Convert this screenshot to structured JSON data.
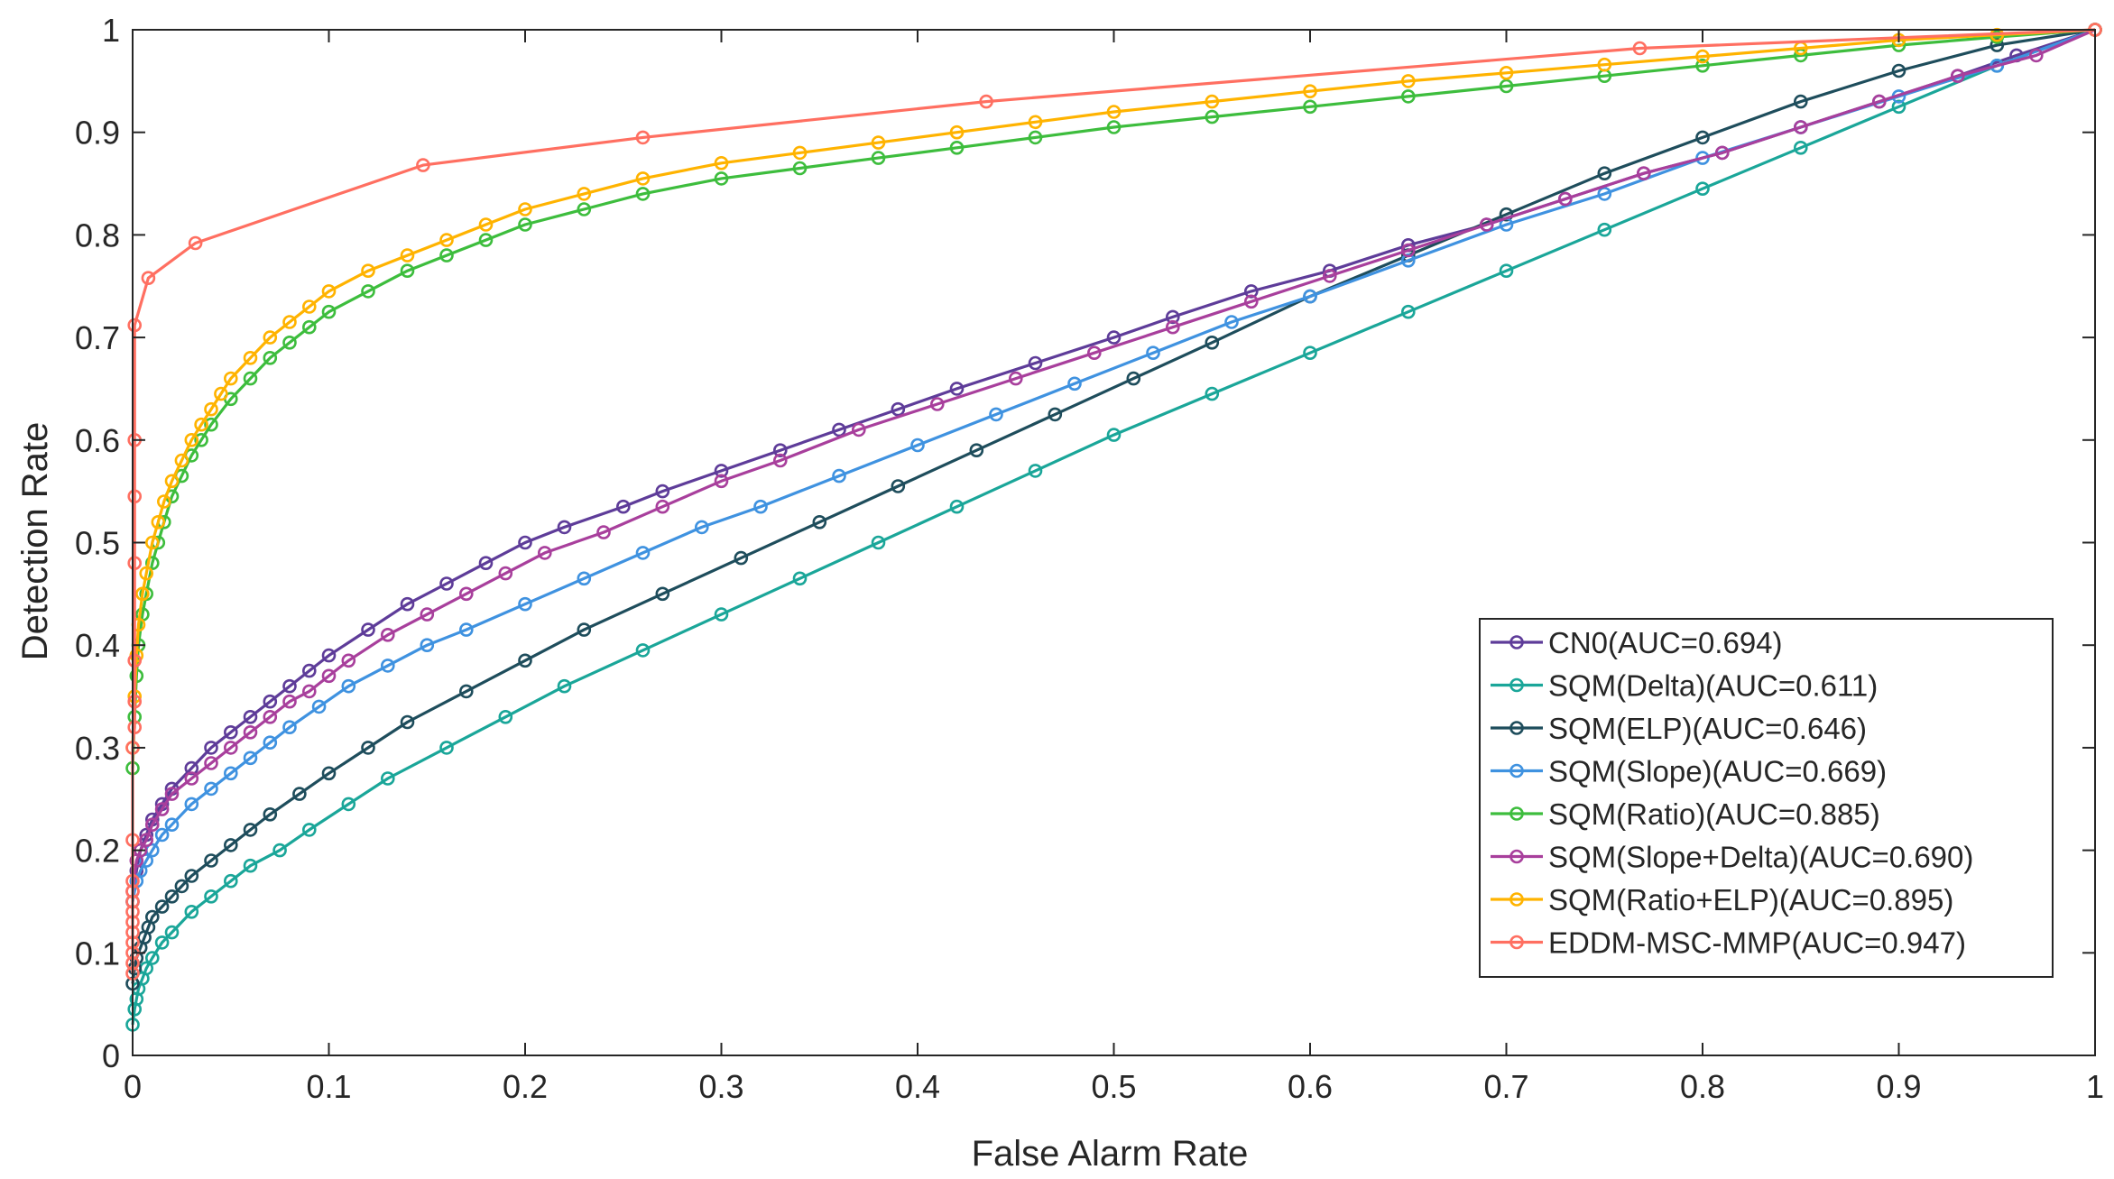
{
  "chart_data": {
    "type": "line",
    "title": "",
    "xlabel": "False Alarm Rate",
    "ylabel": "Detection Rate",
    "xlim": [
      0,
      1
    ],
    "ylim": [
      0,
      1
    ],
    "xticks": [
      "0",
      "0.1",
      "0.2",
      "0.3",
      "0.4",
      "0.5",
      "0.6",
      "0.7",
      "0.8",
      "0.9",
      "1"
    ],
    "yticks": [
      "0",
      "0.1",
      "0.2",
      "0.3",
      "0.4",
      "0.5",
      "0.6",
      "0.7",
      "0.8",
      "0.9",
      "1"
    ],
    "grid": false,
    "legend_position": "bottom-right",
    "series": [
      {
        "name": "CN0(AUC=0.694)",
        "color": "#5e3c99",
        "x": [
          0,
          0.002,
          0.004,
          0.007,
          0.01,
          0.015,
          0.02,
          0.03,
          0.04,
          0.05,
          0.06,
          0.07,
          0.08,
          0.09,
          0.1,
          0.12,
          0.14,
          0.16,
          0.18,
          0.2,
          0.22,
          0.25,
          0.27,
          0.3,
          0.33,
          0.36,
          0.39,
          0.42,
          0.46,
          0.5,
          0.53,
          0.57,
          0.61,
          0.65,
          0.69,
          0.73,
          0.77,
          0.81,
          0.85,
          0.89,
          0.93,
          0.96,
          1
        ],
        "y": [
          0.15,
          0.18,
          0.2,
          0.215,
          0.23,
          0.245,
          0.26,
          0.28,
          0.3,
          0.315,
          0.33,
          0.345,
          0.36,
          0.375,
          0.39,
          0.415,
          0.44,
          0.46,
          0.48,
          0.5,
          0.515,
          0.535,
          0.55,
          0.57,
          0.59,
          0.61,
          0.63,
          0.65,
          0.675,
          0.7,
          0.72,
          0.745,
          0.765,
          0.79,
          0.81,
          0.835,
          0.86,
          0.88,
          0.905,
          0.93,
          0.955,
          0.975,
          1
        ]
      },
      {
        "name": "SQM(Delta)(AUC=0.611)",
        "color": "#1aa699",
        "x": [
          0,
          0.001,
          0.002,
          0.003,
          0.005,
          0.007,
          0.01,
          0.015,
          0.02,
          0.03,
          0.04,
          0.05,
          0.06,
          0.075,
          0.09,
          0.11,
          0.13,
          0.16,
          0.19,
          0.22,
          0.26,
          0.3,
          0.34,
          0.38,
          0.42,
          0.46,
          0.5,
          0.55,
          0.6,
          0.65,
          0.7,
          0.75,
          0.8,
          0.85,
          0.9,
          0.95,
          1
        ],
        "y": [
          0.03,
          0.045,
          0.055,
          0.065,
          0.075,
          0.085,
          0.095,
          0.11,
          0.12,
          0.14,
          0.155,
          0.17,
          0.185,
          0.2,
          0.22,
          0.245,
          0.27,
          0.3,
          0.33,
          0.36,
          0.395,
          0.43,
          0.465,
          0.5,
          0.535,
          0.57,
          0.605,
          0.645,
          0.685,
          0.725,
          0.765,
          0.805,
          0.845,
          0.885,
          0.925,
          0.965,
          1
        ]
      },
      {
        "name": "SQM(ELP)(AUC=0.646)",
        "color": "#1e4d5c",
        "x": [
          0,
          0.001,
          0.002,
          0.004,
          0.006,
          0.008,
          0.01,
          0.015,
          0.02,
          0.025,
          0.03,
          0.04,
          0.05,
          0.06,
          0.07,
          0.085,
          0.1,
          0.12,
          0.14,
          0.17,
          0.2,
          0.23,
          0.27,
          0.31,
          0.35,
          0.39,
          0.43,
          0.47,
          0.51,
          0.55,
          0.6,
          0.65,
          0.7,
          0.75,
          0.8,
          0.85,
          0.9,
          0.95,
          1
        ],
        "y": [
          0.07,
          0.085,
          0.095,
          0.105,
          0.115,
          0.125,
          0.135,
          0.145,
          0.155,
          0.165,
          0.175,
          0.19,
          0.205,
          0.22,
          0.235,
          0.255,
          0.275,
          0.3,
          0.325,
          0.355,
          0.385,
          0.415,
          0.45,
          0.485,
          0.52,
          0.555,
          0.59,
          0.625,
          0.66,
          0.695,
          0.74,
          0.78,
          0.82,
          0.86,
          0.895,
          0.93,
          0.96,
          0.985,
          1
        ]
      },
      {
        "name": "SQM(Slope)(AUC=0.669)",
        "color": "#3f92e0",
        "x": [
          0,
          0.002,
          0.004,
          0.007,
          0.01,
          0.015,
          0.02,
          0.03,
          0.04,
          0.05,
          0.06,
          0.07,
          0.08,
          0.095,
          0.11,
          0.13,
          0.15,
          0.17,
          0.2,
          0.23,
          0.26,
          0.29,
          0.32,
          0.36,
          0.4,
          0.44,
          0.48,
          0.52,
          0.56,
          0.6,
          0.65,
          0.7,
          0.75,
          0.8,
          0.85,
          0.9,
          0.95,
          1
        ],
        "y": [
          0.15,
          0.17,
          0.18,
          0.19,
          0.2,
          0.215,
          0.225,
          0.245,
          0.26,
          0.275,
          0.29,
          0.305,
          0.32,
          0.34,
          0.36,
          0.38,
          0.4,
          0.415,
          0.44,
          0.465,
          0.49,
          0.515,
          0.535,
          0.565,
          0.595,
          0.625,
          0.655,
          0.685,
          0.715,
          0.74,
          0.775,
          0.81,
          0.84,
          0.875,
          0.905,
          0.935,
          0.965,
          1
        ]
      },
      {
        "name": "SQM(Ratio)(AUC=0.885)",
        "color": "#3dbd3d",
        "x": [
          0,
          0.001,
          0.002,
          0.003,
          0.005,
          0.007,
          0.01,
          0.013,
          0.016,
          0.02,
          0.025,
          0.03,
          0.035,
          0.04,
          0.05,
          0.06,
          0.07,
          0.08,
          0.09,
          0.1,
          0.12,
          0.14,
          0.16,
          0.18,
          0.2,
          0.23,
          0.26,
          0.3,
          0.34,
          0.38,
          0.42,
          0.46,
          0.5,
          0.55,
          0.6,
          0.65,
          0.7,
          0.75,
          0.8,
          0.85,
          0.9,
          0.95,
          1
        ],
        "y": [
          0.28,
          0.33,
          0.37,
          0.4,
          0.43,
          0.45,
          0.48,
          0.5,
          0.52,
          0.545,
          0.565,
          0.585,
          0.6,
          0.615,
          0.64,
          0.66,
          0.68,
          0.695,
          0.71,
          0.725,
          0.745,
          0.765,
          0.78,
          0.795,
          0.81,
          0.825,
          0.84,
          0.855,
          0.865,
          0.875,
          0.885,
          0.895,
          0.905,
          0.915,
          0.925,
          0.935,
          0.945,
          0.955,
          0.965,
          0.975,
          0.985,
          0.993,
          1
        ]
      },
      {
        "name": "SQM(Slope+Delta)(AUC=0.690)",
        "color": "#a83f9c",
        "x": [
          0,
          0.002,
          0.004,
          0.007,
          0.01,
          0.015,
          0.02,
          0.03,
          0.04,
          0.05,
          0.06,
          0.07,
          0.08,
          0.09,
          0.1,
          0.11,
          0.13,
          0.15,
          0.17,
          0.19,
          0.21,
          0.24,
          0.27,
          0.3,
          0.33,
          0.37,
          0.41,
          0.45,
          0.49,
          0.53,
          0.57,
          0.61,
          0.65,
          0.69,
          0.73,
          0.77,
          0.81,
          0.85,
          0.89,
          0.93,
          0.97,
          1
        ],
        "y": [
          0.16,
          0.19,
          0.2,
          0.21,
          0.225,
          0.24,
          0.255,
          0.27,
          0.285,
          0.3,
          0.315,
          0.33,
          0.345,
          0.355,
          0.37,
          0.385,
          0.41,
          0.43,
          0.45,
          0.47,
          0.49,
          0.51,
          0.535,
          0.56,
          0.58,
          0.61,
          0.635,
          0.66,
          0.685,
          0.71,
          0.735,
          0.76,
          0.785,
          0.81,
          0.835,
          0.86,
          0.88,
          0.905,
          0.93,
          0.955,
          0.975,
          1
        ]
      },
      {
        "name": "SQM(Ratio+ELP)(AUC=0.895)",
        "color": "#ffb300",
        "x": [
          0,
          0.001,
          0.002,
          0.003,
          0.005,
          0.007,
          0.01,
          0.013,
          0.016,
          0.02,
          0.025,
          0.03,
          0.035,
          0.04,
          0.045,
          0.05,
          0.06,
          0.07,
          0.08,
          0.09,
          0.1,
          0.12,
          0.14,
          0.16,
          0.18,
          0.2,
          0.23,
          0.26,
          0.3,
          0.34,
          0.38,
          0.42,
          0.46,
          0.5,
          0.55,
          0.6,
          0.65,
          0.7,
          0.75,
          0.8,
          0.85,
          0.9,
          0.95,
          1
        ],
        "y": [
          0.3,
          0.35,
          0.39,
          0.42,
          0.45,
          0.47,
          0.5,
          0.52,
          0.54,
          0.56,
          0.58,
          0.6,
          0.615,
          0.63,
          0.645,
          0.66,
          0.68,
          0.7,
          0.715,
          0.73,
          0.745,
          0.765,
          0.78,
          0.795,
          0.81,
          0.825,
          0.84,
          0.855,
          0.87,
          0.88,
          0.89,
          0.9,
          0.91,
          0.92,
          0.93,
          0.94,
          0.95,
          0.958,
          0.966,
          0.974,
          0.982,
          0.99,
          0.995,
          1
        ]
      },
      {
        "name": "EDDM-MSC-MMP(AUC=0.947)",
        "color": "#ff6f61",
        "x": [
          0,
          0,
          0,
          0,
          0,
          0,
          0,
          0,
          0,
          0,
          0,
          0,
          0.001,
          0.001,
          0.001,
          0.001,
          0.001,
          0.001,
          0.001,
          0.008,
          0.032,
          0.148,
          0.26,
          0.435,
          0.768,
          1
        ],
        "y": [
          0.08,
          0.09,
          0.1,
          0.11,
          0.12,
          0.13,
          0.14,
          0.15,
          0.16,
          0.17,
          0.21,
          0.3,
          0.32,
          0.345,
          0.385,
          0.48,
          0.545,
          0.6,
          0.712,
          0.758,
          0.792,
          0.868,
          0.895,
          0.93,
          0.982,
          1
        ]
      }
    ]
  }
}
